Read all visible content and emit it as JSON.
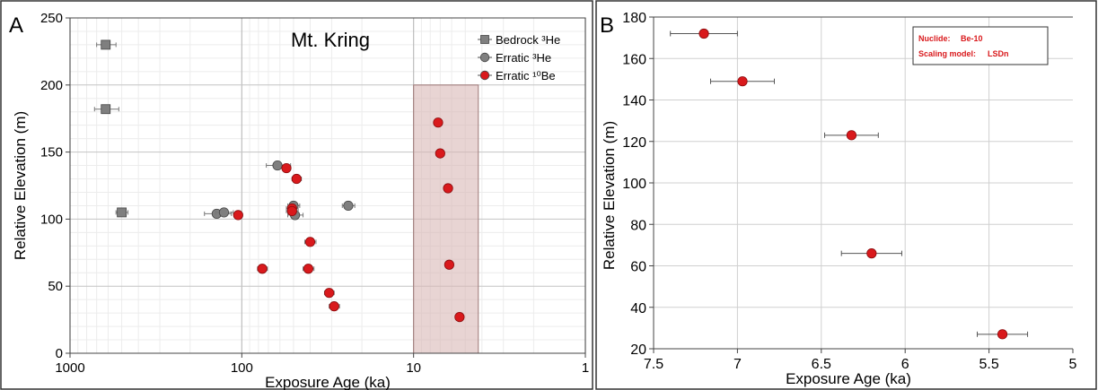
{
  "chart_data": [
    {
      "panel_label": "A",
      "type": "scatter",
      "title": "Mt. Kring",
      "xlabel": "Exposure Age (ka)",
      "ylabel": "Relative Elevation (m)",
      "x_scale": "log",
      "x_reversed": true,
      "xlim": [
        1000,
        1
      ],
      "ylim": [
        0,
        250
      ],
      "x_ticks": [
        1000,
        100,
        10,
        1
      ],
      "x_tick_labels": [
        "1000",
        "100",
        "10",
        "1"
      ],
      "y_ticks": [
        0,
        50,
        100,
        150,
        200,
        250
      ],
      "y_tick_labels": [
        "0",
        "50",
        "100",
        "150",
        "200",
        "250"
      ],
      "grid": true,
      "legend_position": "top-right",
      "shaded_band": {
        "x_range": [
          10,
          4.2
        ],
        "y_range": [
          0,
          200
        ],
        "color": "#d9b8b6"
      },
      "series": [
        {
          "name": "Bedrock ³He",
          "marker": "square",
          "color": "#7f7f7f",
          "points": [
            {
              "x": 620,
              "y": 230,
              "err": 80
            },
            {
              "x": 620,
              "y": 182,
              "err": 100
            },
            {
              "x": 500,
              "y": 105,
              "err": 40
            }
          ]
        },
        {
          "name": "Erratic ³He",
          "marker": "circle",
          "color": "#7f7f7f",
          "points": [
            {
              "x": 62,
              "y": 140,
              "err": 10
            },
            {
              "x": 50,
              "y": 110,
              "err": 4
            },
            {
              "x": 49,
              "y": 103,
              "err": 5
            },
            {
              "x": 24,
              "y": 110,
              "err": 2
            },
            {
              "x": 140,
              "y": 104,
              "err": 25
            },
            {
              "x": 127,
              "y": 105,
              "err": 15
            }
          ]
        },
        {
          "name": "Erratic ¹⁰Be",
          "marker": "circle",
          "color": "#d9191c",
          "points": [
            {
              "x": 55,
              "y": 138,
              "err": 3
            },
            {
              "x": 48,
              "y": 130,
              "err": 3
            },
            {
              "x": 51,
              "y": 108,
              "err": 4
            },
            {
              "x": 51,
              "y": 106,
              "err": 4
            },
            {
              "x": 105,
              "y": 103,
              "err": 6
            },
            {
              "x": 40,
              "y": 83,
              "err": 3
            },
            {
              "x": 76,
              "y": 63,
              "err": 5
            },
            {
              "x": 41,
              "y": 63,
              "err": 3
            },
            {
              "x": 31,
              "y": 45,
              "err": 2
            },
            {
              "x": 29,
              "y": 35,
              "err": 2
            },
            {
              "x": 7.2,
              "y": 172,
              "err": 0.2
            },
            {
              "x": 7.0,
              "y": 149,
              "err": 0.2
            },
            {
              "x": 6.3,
              "y": 123,
              "err": 0.2
            },
            {
              "x": 6.2,
              "y": 66,
              "err": 0.2
            },
            {
              "x": 5.4,
              "y": 27,
              "err": 0.15
            }
          ]
        }
      ]
    },
    {
      "panel_label": "B",
      "type": "scatter",
      "xlabel": "Exposure Age (ka)",
      "ylabel": "Relative Elevation (m)",
      "x_reversed": true,
      "xlim": [
        7.5,
        5
      ],
      "ylim": [
        20,
        180
      ],
      "x_ticks": [
        7.5,
        7,
        6.5,
        6,
        5.5,
        5
      ],
      "x_tick_labels": [
        "7.5",
        "7",
        "6.5",
        "6",
        "5.5",
        "5"
      ],
      "y_ticks": [
        20,
        40,
        60,
        80,
        100,
        120,
        140,
        160,
        180
      ],
      "y_tick_labels": [
        "20",
        "40",
        "60",
        "80",
        "100",
        "120",
        "140",
        "160",
        "180"
      ],
      "grid": true,
      "info_box": {
        "position": "top-right",
        "color": "#d9191c",
        "lines": [
          {
            "label": "Nuclide:",
            "value": "Be-10"
          },
          {
            "label": "Scaling model:",
            "value": "LSDn"
          }
        ]
      },
      "series": [
        {
          "marker": "circle",
          "color": "#d9191c",
          "points": [
            {
              "x": 7.2,
              "y": 172,
              "err": 0.2
            },
            {
              "x": 6.97,
              "y": 149,
              "err": 0.19
            },
            {
              "x": 6.32,
              "y": 123,
              "err": 0.16
            },
            {
              "x": 6.2,
              "y": 66,
              "err": 0.18
            },
            {
              "x": 5.42,
              "y": 27,
              "err": 0.15
            }
          ]
        }
      ]
    }
  ]
}
